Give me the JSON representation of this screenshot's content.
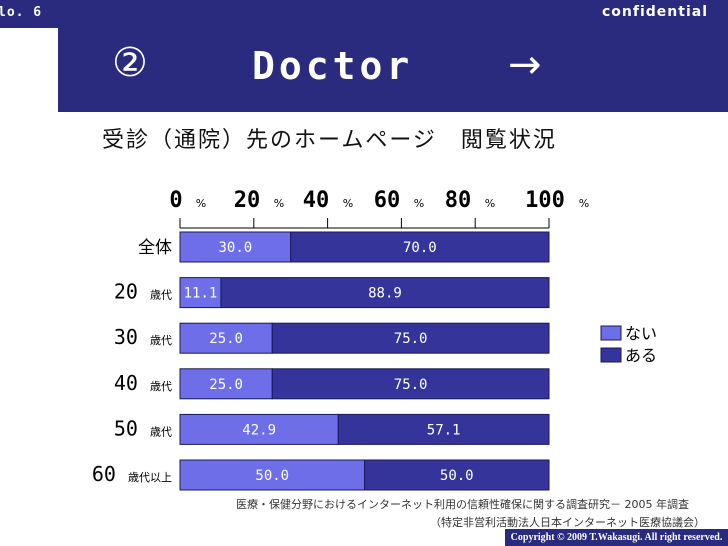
{
  "header": {
    "slide_no": "lo. 6",
    "confidential": "confidential",
    "title_num": "②",
    "title_main": "Doctor",
    "title_arrow": "→"
  },
  "subtitle": "受診（通院）先のホームページ　閲覧状況",
  "footnote": {
    "line1": "医療・保健分野におけるインターネット利用の信頼性確保に関する調査研究－ 2005 年調査",
    "line2": "（特定非営利活動法人日本インターネット医療協議会）"
  },
  "copyright": "Copyright © 2009 T.Wakasugi. All right reserved.",
  "colors": {
    "header_bg": "#2a2a7e",
    "nai": "#6e6ee8",
    "aru": "#34349a",
    "bar_border": "#1a1a5a"
  },
  "chart_data": {
    "type": "bar",
    "orientation": "horizontal",
    "stacked": true,
    "title": "受診（通院）先のホームページ　閲覧状況",
    "categories": [
      {
        "num": "",
        "suffix": "全体"
      },
      {
        "num": "20",
        "suffix": "歳代"
      },
      {
        "num": "30",
        "suffix": "歳代"
      },
      {
        "num": "40",
        "suffix": "歳代"
      },
      {
        "num": "50",
        "suffix": "歳代"
      },
      {
        "num": "60",
        "suffix": "歳代以上"
      }
    ],
    "series": [
      {
        "name": "ない",
        "values": [
          30.0,
          11.1,
          25.0,
          25.0,
          42.9,
          50.0
        ],
        "labels": [
          "30.0",
          "11.1",
          "25.0",
          "25.0",
          "42.9",
          "50.0"
        ]
      },
      {
        "name": "ある",
        "values": [
          70.0,
          88.9,
          75.0,
          75.0,
          57.1,
          50.0
        ],
        "labels": [
          "70.0",
          "88.9",
          "75.0",
          "75.0",
          "57.1",
          "50.0"
        ]
      }
    ],
    "xlim": [
      0,
      100
    ],
    "ticks": [
      0,
      20,
      40,
      60,
      80,
      100
    ],
    "tick_unit": "%",
    "legend_position": "right",
    "grid": false
  }
}
